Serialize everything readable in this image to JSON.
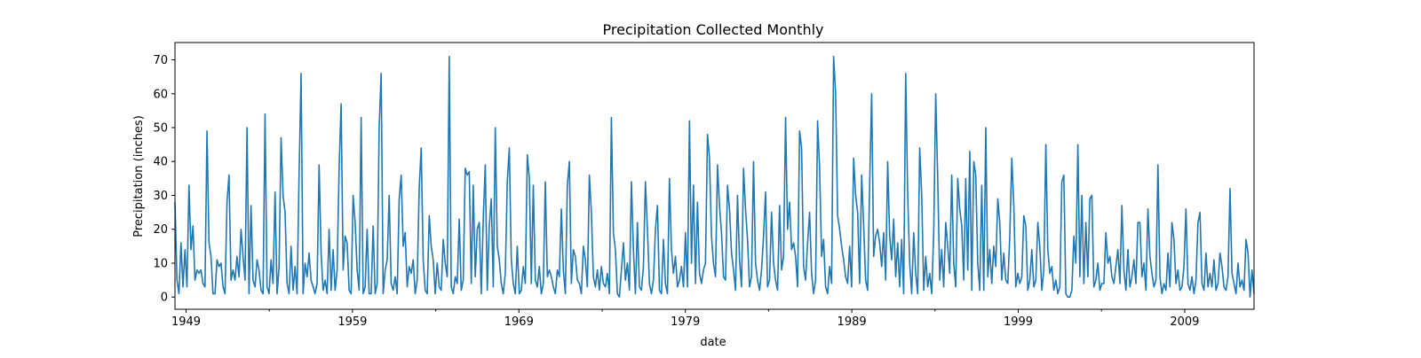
{
  "chart_data": {
    "type": "line",
    "title": "Precipitation Collected Monthly",
    "xlabel": "date",
    "ylabel": "Precipitation (inches)",
    "x_start": "1948-05",
    "x_end": "2013-03",
    "frequency": "monthly",
    "x_major_ticks": [
      "1949",
      "1959",
      "1969",
      "1979",
      "1989",
      "1999",
      "2009"
    ],
    "y_ticks": [
      0,
      10,
      20,
      30,
      40,
      50,
      60,
      70
    ],
    "ylim": [
      -3.6,
      75.1
    ],
    "grid": false,
    "line_color": "#1f77b4",
    "series": [
      {
        "values": [
          28,
          5,
          1,
          16,
          3,
          14,
          3,
          33,
          14,
          21,
          5,
          8,
          7,
          8,
          4,
          3,
          49,
          16,
          12,
          1,
          1,
          11,
          9,
          10,
          3,
          1,
          28,
          36,
          5,
          8,
          5,
          12,
          6,
          20,
          12,
          5,
          50,
          1,
          27,
          5,
          3,
          11,
          8,
          2,
          1,
          54,
          3,
          1,
          11,
          4,
          31,
          1,
          9,
          47,
          30,
          25,
          4,
          1,
          15,
          2,
          9,
          1,
          36,
          66,
          1,
          10,
          6,
          13,
          5,
          3,
          1,
          4,
          39,
          13,
          2,
          5,
          1,
          20,
          2,
          14,
          2,
          8,
          38,
          57,
          8,
          18,
          16,
          2,
          1,
          30,
          22,
          8,
          2,
          53,
          1,
          3,
          20,
          1,
          1,
          21,
          1,
          4,
          50,
          66,
          1,
          8,
          11,
          30,
          4,
          2,
          6,
          1,
          29,
          36,
          15,
          19,
          3,
          9,
          7,
          11,
          1,
          5,
          32,
          44,
          11,
          2,
          1,
          24,
          15,
          11,
          1,
          10,
          3,
          2,
          17,
          10,
          6,
          71,
          3,
          1,
          6,
          4,
          23,
          2,
          5,
          38,
          36,
          37,
          4,
          33,
          6,
          20,
          22,
          1,
          23,
          39,
          2,
          21,
          29,
          3,
          50,
          15,
          11,
          4,
          1,
          7,
          34,
          44,
          11,
          4,
          1,
          15,
          1,
          2,
          9,
          4,
          42,
          35,
          4,
          33,
          5,
          3,
          9,
          1,
          4,
          34,
          6,
          8,
          6,
          3,
          1,
          8,
          6,
          26,
          8,
          1,
          33,
          40,
          4,
          14,
          12,
          5,
          4,
          1,
          15,
          11,
          3,
          36,
          25,
          6,
          3,
          8,
          2,
          9,
          4,
          3,
          7,
          1,
          53,
          19,
          14,
          1,
          0,
          8,
          16,
          5,
          10,
          2,
          34,
          14,
          1,
          22,
          3,
          2,
          9,
          34,
          20,
          4,
          1,
          5,
          20,
          27,
          2,
          1,
          17,
          4,
          1,
          35,
          14,
          7,
          12,
          3,
          5,
          9,
          3,
          19,
          3,
          52,
          10,
          33,
          4,
          28,
          7,
          4,
          8,
          10,
          48,
          41,
          18,
          10,
          6,
          39,
          27,
          19,
          6,
          5,
          33,
          26,
          13,
          8,
          2,
          30,
          11,
          3,
          38,
          26,
          17,
          3,
          6,
          40,
          10,
          5,
          2,
          8,
          18,
          31,
          3,
          5,
          25,
          10,
          5,
          2,
          27,
          8,
          12,
          53,
          20,
          28,
          14,
          16,
          12,
          3,
          49,
          44,
          9,
          5,
          16,
          25,
          7,
          1,
          5,
          52,
          38,
          12,
          17,
          3,
          1,
          9,
          4,
          71,
          60,
          24,
          20,
          15,
          11,
          6,
          4,
          15,
          3,
          41,
          30,
          25,
          4,
          36,
          21,
          5,
          2,
          33,
          60,
          12,
          18,
          20,
          16,
          9,
          19,
          5,
          40,
          18,
          11,
          23,
          6,
          16,
          3,
          17,
          1,
          66,
          30,
          10,
          1,
          19,
          7,
          1,
          44,
          30,
          2,
          12,
          3,
          7,
          1,
          19,
          60,
          35,
          5,
          14,
          3,
          22,
          15,
          7,
          36,
          10,
          3,
          35,
          26,
          21,
          5,
          35,
          8,
          43,
          2,
          40,
          36,
          10,
          2,
          33,
          2,
          50,
          6,
          14,
          4,
          15,
          9,
          29,
          22,
          5,
          13,
          5,
          4,
          18,
          41,
          27,
          3,
          7,
          4,
          6,
          24,
          21,
          2,
          5,
          14,
          3,
          5,
          22,
          15,
          2,
          8,
          45,
          14,
          7,
          9,
          2,
          5,
          1,
          3,
          34,
          36,
          1,
          0,
          0,
          2,
          18,
          10,
          45,
          6,
          30,
          4,
          22,
          6,
          29,
          30,
          3,
          5,
          10,
          2,
          4,
          4,
          19,
          10,
          12,
          6,
          4,
          9,
          14,
          4,
          27,
          8,
          2,
          14,
          3,
          6,
          11,
          4,
          22,
          22,
          6,
          10,
          2,
          26,
          12,
          7,
          3,
          5,
          39,
          6,
          1,
          4,
          2,
          13,
          3,
          22,
          17,
          4,
          8,
          2,
          3,
          9,
          26,
          4,
          2,
          6,
          1,
          5,
          22,
          25,
          4,
          2,
          13,
          3,
          7,
          3,
          11,
          2,
          4,
          13,
          9,
          3,
          2,
          6,
          32,
          7,
          4,
          1,
          10,
          3,
          5,
          2,
          17,
          13,
          0,
          8,
          1
        ]
      }
    ]
  }
}
